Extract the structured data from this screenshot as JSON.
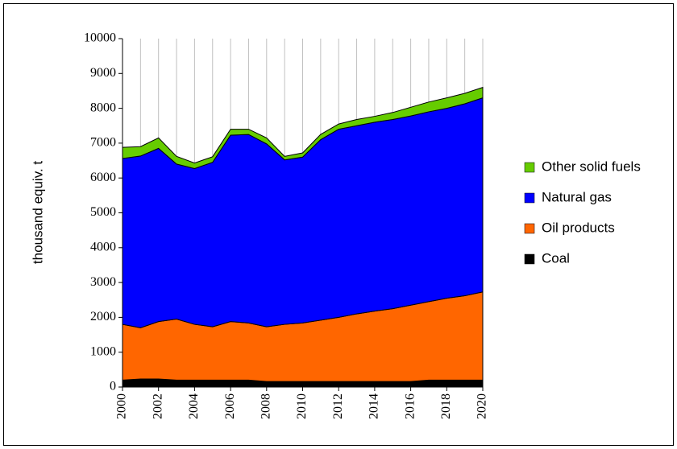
{
  "chart_data": {
    "type": "stacked_area",
    "y_label": "thousand equiv. t",
    "x": [
      2000,
      2001,
      2002,
      2003,
      2004,
      2005,
      2006,
      2007,
      2008,
      2009,
      2010,
      2011,
      2012,
      2013,
      2014,
      2015,
      2016,
      2017,
      2018,
      2019,
      2020
    ],
    "xlim": [
      2000,
      2020
    ],
    "xticks": [
      2000,
      2002,
      2004,
      2006,
      2008,
      2010,
      2012,
      2014,
      2016,
      2018,
      2020
    ],
    "ylim": [
      0,
      10000
    ],
    "yticks": [
      0,
      1000,
      2000,
      3000,
      4000,
      5000,
      6000,
      7000,
      8000,
      9000,
      10000
    ],
    "grid": true,
    "legend": "right",
    "series": [
      {
        "name": "Coal",
        "color": "#000000",
        "values": [
          200,
          230,
          230,
          200,
          200,
          200,
          200,
          200,
          160,
          160,
          160,
          160,
          160,
          160,
          160,
          160,
          160,
          200,
          200,
          200,
          200
        ]
      },
      {
        "name": "Oil products",
        "color": "#ff6600",
        "values": [
          1600,
          1470,
          1650,
          1750,
          1600,
          1530,
          1680,
          1640,
          1570,
          1640,
          1680,
          1760,
          1840,
          1940,
          2020,
          2090,
          2190,
          2250,
          2350,
          2420,
          2530
        ]
      },
      {
        "name": "Natural gas",
        "color": "#0000ff",
        "values": [
          4760,
          4930,
          4970,
          4450,
          4470,
          4720,
          5350,
          5410,
          5250,
          4720,
          4760,
          5180,
          5400,
          5400,
          5420,
          5430,
          5430,
          5450,
          5450,
          5510,
          5570
        ]
      },
      {
        "name": "Other solid fuels",
        "color": "#66cc00",
        "values": [
          320,
          270,
          300,
          220,
          160,
          160,
          170,
          150,
          170,
          100,
          120,
          150,
          150,
          180,
          170,
          200,
          250,
          280,
          300,
          300,
          300
        ]
      }
    ]
  }
}
